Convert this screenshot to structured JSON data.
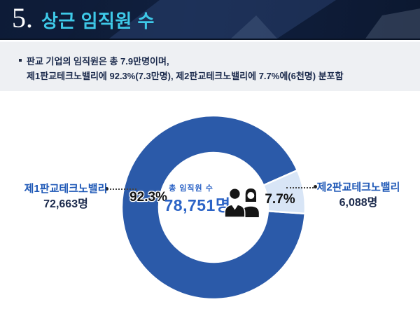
{
  "header": {
    "number": "5.",
    "title": "상근 임직원 수"
  },
  "summary": {
    "line1": "판교 기업의 임직원은 총 7.9만명이며,",
    "line2": "제1판교테크노밸리에 92.3%(7.3만명), 제2판교테크노밸리에 7.7%에(6천명) 분포함"
  },
  "chart_data": {
    "type": "pie",
    "subtype": "donut",
    "title": "상근 임직원 수",
    "center_label": "총 임직원 수",
    "center_value": "78,751명",
    "total_value": 78751,
    "legend_position": "sides",
    "icon": "two-people-icon",
    "slices": [
      {
        "name": "제1판교테크노밸리",
        "percent": 92.3,
        "value": 72663,
        "count_label": "72,663명",
        "pct_label": "92.3%",
        "color": "#2b5aa9"
      },
      {
        "name": "제2판교테크노밸리",
        "percent": 7.7,
        "value": 6088,
        "count_label": "6,088명",
        "pct_label": "7.7%",
        "color": "#d8e5f6"
      }
    ]
  },
  "colors": {
    "header_bg": "#0e1b33",
    "title_accent": "#3ec9e8",
    "strip_bg": "#eef0f3",
    "body_text": "#1b2a4c",
    "label_blue": "#1d57b6",
    "center_blue": "#2b63c6",
    "slice_dark": "#2b5aa9",
    "slice_light": "#d8e5f6"
  }
}
